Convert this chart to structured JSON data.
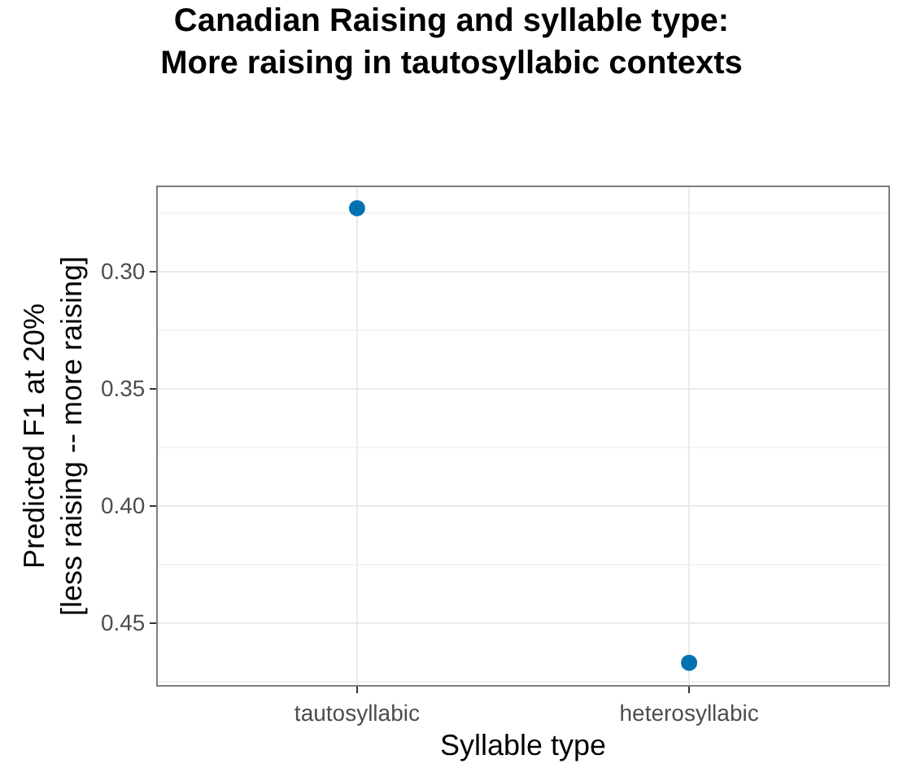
{
  "chart_data": {
    "type": "scatter",
    "title": "Canadian Raising and syllable type:\nMore raising in tautosyllabic contexts",
    "xlabel": "Syllable type",
    "ylabel": "Predicted F1 at 20%\n[less raising -- more raising]",
    "categories": [
      "tautosyllabic",
      "heterosyllabic"
    ],
    "series": [
      {
        "color": "#0072b2",
        "values": [
          0.273,
          0.467
        ]
      }
    ],
    "ylim": [
      0.4765,
      0.264
    ],
    "yticks": [
      {
        "value": 0.3,
        "label": "0.30"
      },
      {
        "value": 0.35,
        "label": "0.35"
      },
      {
        "value": 0.4,
        "label": "0.40"
      },
      {
        "value": 0.45,
        "label": "0.45"
      }
    ],
    "grid": true,
    "marker": "circle"
  }
}
